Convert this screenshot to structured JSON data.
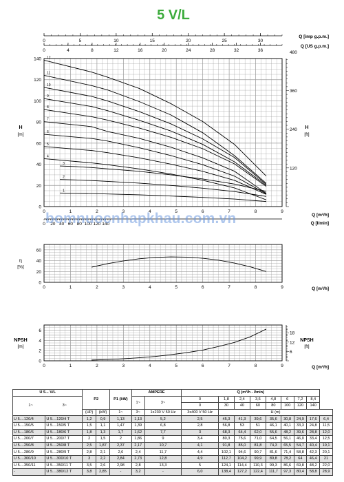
{
  "title": "5 V/L",
  "colors": {
    "title": "#3cab3c",
    "grid": "#9a9a9a",
    "curve": "#000000",
    "watermark": "#6f9be0"
  },
  "watermark": "bomnuocnhapkhau.com.vn",
  "chart_data": [
    {
      "type": "line",
      "name": "performance",
      "top_axes": [
        {
          "label": "Q [imp g.p.m.]",
          "ticks": [
            "0",
            "5",
            "10",
            "15",
            "20",
            "25",
            "30"
          ]
        },
        {
          "label": "Q [US g.p.m.]",
          "ticks": [
            "0",
            "4",
            "8",
            "12",
            "16",
            "20",
            "24",
            "28",
            "32",
            "36"
          ]
        }
      ],
      "ylabel_left": "H",
      "yunit_left": "[m]",
      "ylabel_right": "H",
      "yunit_right": "[ft]",
      "yticks_left": [
        "0",
        "20",
        "40",
        "60",
        "80",
        "100",
        "120",
        "140"
      ],
      "yticks_right": [
        "120",
        "240",
        "360",
        "480"
      ],
      "bottom_axes": [
        {
          "label": "Q [m³/h]",
          "ticks": [
            "0",
            "1",
            "2",
            "3",
            "4",
            "5",
            "6",
            "7",
            "8",
            "9"
          ]
        },
        {
          "label": "Q [l/min]",
          "ticks": [
            "0",
            "20",
            "40",
            "60",
            "80",
            "100",
            "120",
            "140"
          ]
        }
      ],
      "xlim": [
        0,
        9
      ],
      "ylim": [
        0,
        140
      ],
      "series": [
        {
          "name": "1",
          "q": [
            0.6,
            1.2,
            1.8,
            2.4,
            3.6,
            4.8,
            6,
            7.2,
            8.4
          ],
          "h": [
            12.8,
            12.6,
            12.3,
            11.9,
            11.1,
            10,
            8.7,
            7.1,
            4.8
          ]
        },
        {
          "name": "2",
          "q": [
            0.6,
            1.2,
            1.8,
            2.4,
            3.6,
            4.8,
            6,
            7.2,
            8.4
          ],
          "h": [
            25.6,
            25.2,
            24.6,
            23.8,
            22.2,
            20,
            17.4,
            14.2,
            9.6
          ]
        },
        {
          "name": "3",
          "q": [
            0.6,
            1.2,
            1.8,
            2.4,
            3.6,
            4.8,
            6,
            7.2,
            8.4
          ],
          "h": [
            38.4,
            37.8,
            36.9,
            35.7,
            33.3,
            30,
            26.1,
            21.3,
            14.4
          ]
        },
        {
          "name": "4",
          "q": [
            0,
            1.8,
            2.4,
            3.6,
            4.8,
            6,
            7.2,
            8.4
          ],
          "h": [
            45.3,
            41.3,
            39.6,
            35.6,
            30.8,
            24.9,
            17.6,
            6.4
          ]
        },
        {
          "name": "5",
          "q": [
            0,
            1.8,
            2.4,
            3.6,
            4.8,
            6,
            7.2,
            8.4
          ],
          "h": [
            56.8,
            53,
            51,
            46.1,
            40.1,
            33.3,
            24.8,
            11.5
          ]
        },
        {
          "name": "6",
          "q": [
            0,
            1.8,
            2.4,
            3.6,
            4.8,
            6,
            7.2,
            8.4
          ],
          "h": [
            68.3,
            64.4,
            62,
            55.6,
            48.2,
            39.6,
            28.8,
            12
          ]
        },
        {
          "name": "7",
          "q": [
            0,
            1.8,
            2.4,
            3.6,
            4.8,
            6,
            7.2,
            8.4
          ],
          "h": [
            80.3,
            75.6,
            71,
            64.5,
            56.1,
            46,
            33.4,
            12.5
          ]
        },
        {
          "name": "8",
          "q": [
            0,
            1.8,
            2.4,
            3.6,
            4.8,
            6,
            7.2,
            8.4
          ],
          "h": [
            91.8,
            85,
            81.8,
            74.3,
            65.5,
            54.7,
            40.4,
            19.1
          ]
        },
        {
          "name": "9",
          "q": [
            0,
            1.8,
            2.4,
            3.6,
            4.8,
            6,
            7.2,
            8.4
          ],
          "h": [
            102.1,
            94.6,
            90.7,
            81.6,
            71.4,
            58.8,
            42.3,
            20.1
          ]
        },
        {
          "name": "10",
          "q": [
            0,
            1.8,
            2.4,
            3.6,
            4.8,
            6,
            7.2,
            8.4
          ],
          "h": [
            112.7,
            104.2,
            99.9,
            89.8,
            78.2,
            64,
            46.4,
            21
          ]
        },
        {
          "name": "11",
          "q": [
            0,
            1.8,
            2.4,
            3.6,
            4.8,
            6,
            7.2,
            8.4
          ],
          "h": [
            124.1,
            114.4,
            110.3,
            99.3,
            86.6,
            69.8,
            48.2,
            22
          ]
        },
        {
          "name": "12",
          "q": [
            0,
            1.8,
            2.4,
            3.6,
            4.8,
            6,
            7.2,
            8.4
          ],
          "h": [
            138.4,
            127.2,
            122.4,
            111.7,
            97.3,
            80.4,
            58.8,
            28.9
          ]
        }
      ]
    },
    {
      "type": "line",
      "name": "efficiency",
      "ylabel": "η",
      "yunit": "[%]",
      "yticks": [
        "0",
        "20",
        "40",
        "60"
      ],
      "xlabel": "Q [m³/h]",
      "xticks": [
        "0",
        "1",
        "2",
        "3",
        "4",
        "5",
        "6",
        "7",
        "8",
        "9"
      ],
      "ylim": [
        0,
        70
      ],
      "xlim": [
        0,
        9
      ],
      "x": [
        1.8,
        2.4,
        3,
        3.6,
        4.2,
        4.8,
        5.4,
        6,
        6.6,
        7.2,
        7.8,
        8.4
      ],
      "y": [
        28,
        34.5,
        39.5,
        43.5,
        46,
        47,
        46.5,
        44.5,
        41,
        35.5,
        28.5,
        20
      ]
    },
    {
      "type": "line",
      "name": "npsh",
      "ylabel": "NPSH",
      "yunit": "[m]",
      "ylabel_right": "NPSH",
      "yunit_right": "[ft]",
      "yticks": [
        "0",
        "2",
        "4",
        "6"
      ],
      "yticks_right": [
        "6",
        "12",
        "18"
      ],
      "xlabel": "Q [m³/h]",
      "xticks": [
        "0",
        "1",
        "2",
        "3",
        "4",
        "5",
        "6",
        "7",
        "8",
        "9"
      ],
      "ylim": [
        0,
        7
      ],
      "xlim": [
        0,
        9
      ],
      "x": [
        1.8,
        2.4,
        3,
        3.6,
        4.2,
        4.8,
        5.4,
        6,
        6.6,
        7.2,
        7.8,
        8.4
      ],
      "y": [
        0.15,
        0.25,
        0.4,
        0.6,
        0.85,
        1.2,
        1.6,
        2.1,
        2.8,
        3.6,
        4.7,
        6.2
      ]
    }
  ],
  "table": {
    "header1": [
      "U 5... V/L",
      "",
      "P2",
      "P1 (kW)",
      "AMPERE",
      "",
      "Q (m³/h - l/min)"
    ],
    "ampere_sub": [
      "1~",
      "3~"
    ],
    "q_m3h": [
      "0",
      "1,8",
      "2,4",
      "3,6",
      "4,8",
      "6",
      "7,2",
      "8,4"
    ],
    "q_lmin": [
      "0",
      "30",
      "40",
      "60",
      "80",
      "100",
      "120",
      "140"
    ],
    "sub_left": [
      "1~",
      "3~"
    ],
    "units": [
      "(HP)",
      "(kW)",
      "1~",
      "3~",
      "1x230 V 50 Hz",
      "3x400 V 50 Hz"
    ],
    "h_label": "H (m)",
    "rows": [
      [
        "U 5....120/4",
        "U 5....120/4 T",
        "1,2",
        "0,9",
        "1,13",
        "1,13",
        "5,2",
        "2,5",
        "45,3",
        "41,3",
        "39,6",
        "35,6",
        "30,8",
        "24,9",
        "17,6",
        "6,4"
      ],
      [
        "U 5....150/5",
        "U 5....150/5 T",
        "1,5",
        "1,1",
        "1,47",
        "1,39",
        "6,8",
        "2,8",
        "56,8",
        "53",
        "51",
        "46,1",
        "40,1",
        "33,3",
        "24,8",
        "11,5"
      ],
      [
        "U 5....180/6",
        "U 5....180/6 T",
        "1,8",
        "1,3",
        "1,7",
        "1,62",
        "7,7",
        "3",
        "68,3",
        "64,4",
        "62,0",
        "55,6",
        "48,2",
        "39,6",
        "28,8",
        "12,0"
      ],
      [
        "U 5....200/7",
        "U 5....200/7 T",
        "2",
        "1,5",
        "2",
        "1,86",
        "9",
        "3,4",
        "80,3",
        "75,6",
        "71,0",
        "64,5",
        "56,1",
        "46,0",
        "33,4",
        "12,5"
      ],
      [
        "U 5....250/8",
        "U 5....250/8 T",
        "2,5",
        "1,87",
        "2,37",
        "2,17",
        "10,7",
        "4,1",
        "91,8",
        "85,0",
        "81,8",
        "74,3",
        "65,5",
        "54,7",
        "40,4",
        "19,1"
      ],
      [
        "U 5....280/9",
        "U 5....280/9 T",
        "2,8",
        "2,1",
        "2,6",
        "2,4",
        "11,7",
        "4,4",
        "102,1",
        "94,6",
        "90,7",
        "81,6",
        "71,4",
        "58,8",
        "42,3",
        "20,1"
      ],
      [
        "U 5....300/10",
        "U 5....300/10 T",
        "3",
        "2,2",
        "2,84",
        "2,73",
        "12,8",
        "4,9",
        "112,7",
        "104,2",
        "99,9",
        "89,8",
        "78,2",
        "64",
        "46,4",
        "21"
      ],
      [
        "U 5....350/11",
        "U 5....350/11 T",
        "3,5",
        "2,6",
        "2,98",
        "2,8",
        "13,3",
        "5",
        "124,1",
        "114,4",
        "110,3",
        "99,3",
        "86,6",
        "69,8",
        "48,2",
        "22,0"
      ],
      [
        "-",
        "U 5....380/12 T",
        "3,8",
        "2,85",
        "-",
        "3,2",
        "-",
        "6,0",
        "138,4",
        "127,2",
        "122,4",
        "111,7",
        "97,3",
        "80,4",
        "58,8",
        "28,9"
      ]
    ]
  }
}
